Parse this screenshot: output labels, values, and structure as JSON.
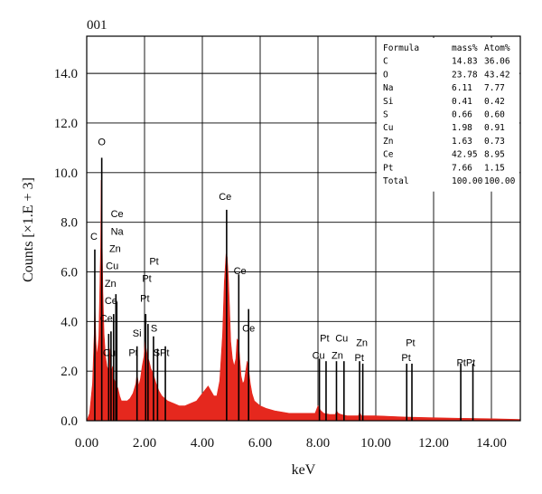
{
  "chart_data": {
    "type": "area",
    "title": "001",
    "xlabel": "keV",
    "ylabel": "Counts [×1.E + 3]",
    "xlim": [
      0,
      15
    ],
    "ylim": [
      0,
      15.5
    ],
    "x_ticks": [
      "0.00",
      "2.00",
      "4.00",
      "6.00",
      "8.00",
      "10.00",
      "12.00",
      "14.00"
    ],
    "y_ticks": [
      "0.0",
      "2.0",
      "4.0",
      "6.0",
      "8.0",
      "10.0",
      "12.0",
      "14.0"
    ],
    "grid": true,
    "series": [
      {
        "color": "#e5281e",
        "x": [
          0.0,
          0.1,
          0.2,
          0.26,
          0.28,
          0.32,
          0.36,
          0.42,
          0.48,
          0.5,
          0.53,
          0.56,
          0.6,
          0.65,
          0.7,
          0.76,
          0.8,
          0.85,
          0.9,
          0.94,
          1.0,
          1.04,
          1.08,
          1.14,
          1.2,
          1.3,
          1.4,
          1.5,
          1.6,
          1.7,
          1.74,
          1.8,
          1.86,
          1.92,
          1.98,
          2.02,
          2.06,
          2.1,
          2.16,
          2.22,
          2.3,
          2.4,
          2.5,
          2.6,
          2.7,
          2.8,
          3.0,
          3.2,
          3.4,
          3.6,
          3.8,
          4.0,
          4.2,
          4.4,
          4.5,
          4.6,
          4.7,
          4.76,
          4.82,
          4.86,
          4.9,
          4.94,
          4.98,
          5.04,
          5.1,
          5.16,
          5.2,
          5.24,
          5.28,
          5.34,
          5.4,
          5.45,
          5.5,
          5.55,
          5.6,
          5.66,
          5.72,
          5.8,
          5.9,
          6.0,
          6.2,
          6.5,
          7.0,
          7.5,
          7.9,
          8.0,
          8.05,
          8.1,
          8.2,
          8.4,
          8.6,
          8.64,
          8.7,
          8.8,
          9.0,
          9.4,
          9.44,
          9.5,
          10.0,
          11.0,
          12.0,
          13.0,
          14.0,
          15.0
        ],
        "y": [
          0.0,
          0.3,
          1.5,
          3.5,
          4.8,
          3.2,
          2.6,
          3.4,
          7.0,
          9.7,
          7.5,
          5.2,
          3.5,
          2.6,
          2.2,
          2.0,
          2.9,
          2.0,
          2.2,
          1.7,
          1.5,
          1.4,
          1.3,
          1.0,
          0.8,
          0.8,
          0.8,
          0.9,
          1.1,
          1.5,
          1.9,
          1.4,
          1.7,
          2.2,
          2.6,
          3.2,
          2.9,
          2.6,
          2.4,
          2.1,
          1.9,
          1.5,
          1.2,
          1.0,
          0.9,
          0.8,
          0.7,
          0.6,
          0.6,
          0.7,
          0.8,
          1.1,
          1.4,
          1.0,
          1.0,
          1.6,
          3.5,
          5.6,
          6.7,
          6.6,
          5.8,
          4.6,
          3.2,
          2.5,
          2.2,
          2.5,
          3.3,
          3.2,
          2.7,
          1.8,
          1.5,
          1.6,
          2.0,
          2.4,
          2.1,
          1.5,
          1.1,
          0.8,
          0.7,
          0.6,
          0.5,
          0.4,
          0.3,
          0.3,
          0.3,
          0.6,
          0.5,
          0.4,
          0.3,
          0.25,
          0.25,
          0.4,
          0.3,
          0.25,
          0.2,
          0.2,
          0.35,
          0.2,
          0.2,
          0.15,
          0.12,
          0.1,
          0.08,
          0.05
        ]
      }
    ],
    "peak_markers": [
      {
        "x": 0.28,
        "height": 6.9
      },
      {
        "x": 0.52,
        "height": 10.6
      },
      {
        "x": 0.76,
        "height": 3.5
      },
      {
        "x": 0.84,
        "height": 3.6
      },
      {
        "x": 0.93,
        "height": 4.3
      },
      {
        "x": 1.01,
        "height": 5.1
      },
      {
        "x": 1.04,
        "height": 4.8
      },
      {
        "x": 1.74,
        "height": 3.0
      },
      {
        "x": 2.04,
        "height": 4.3
      },
      {
        "x": 2.12,
        "height": 3.9
      },
      {
        "x": 2.31,
        "height": 3.4
      },
      {
        "x": 2.45,
        "height": 2.9
      },
      {
        "x": 2.72,
        "height": 3.0
      },
      {
        "x": 4.84,
        "height": 8.5
      },
      {
        "x": 5.26,
        "height": 5.9
      },
      {
        "x": 5.6,
        "height": 4.5
      },
      {
        "x": 8.05,
        "height": 2.5
      },
      {
        "x": 8.28,
        "height": 2.4
      },
      {
        "x": 8.64,
        "height": 2.4
      },
      {
        "x": 8.9,
        "height": 2.4
      },
      {
        "x": 9.44,
        "height": 2.4
      },
      {
        "x": 9.55,
        "height": 2.3
      },
      {
        "x": 11.07,
        "height": 2.3
      },
      {
        "x": 11.25,
        "height": 2.3
      },
      {
        "x": 12.94,
        "height": 2.3
      },
      {
        "x": 13.36,
        "height": 2.3
      }
    ],
    "peak_labels": [
      {
        "text": "O",
        "x": 0.52,
        "y": 11.1
      },
      {
        "text": "C",
        "x": 0.25,
        "y": 7.3
      },
      {
        "text": "Ce",
        "x": 1.05,
        "y": 8.2
      },
      {
        "text": "Na",
        "x": 1.05,
        "y": 7.5
      },
      {
        "text": "Zn",
        "x": 0.98,
        "y": 6.8
      },
      {
        "text": "Cu",
        "x": 0.88,
        "y": 6.1
      },
      {
        "text": "Zn",
        "x": 0.82,
        "y": 5.4
      },
      {
        "text": "Ce",
        "x": 0.84,
        "y": 4.7
      },
      {
        "text": "Ce",
        "x": 0.68,
        "y": 4.0
      },
      {
        "text": "Si",
        "x": 1.74,
        "y": 3.4
      },
      {
        "text": "Cu",
        "x": 0.78,
        "y": 2.6
      },
      {
        "text": "Pt",
        "x": 1.61,
        "y": 2.6
      },
      {
        "text": "S",
        "x": 2.33,
        "y": 3.6
      },
      {
        "text": "SPt",
        "x": 2.58,
        "y": 2.6
      },
      {
        "text": "Pt",
        "x": 2.33,
        "y": 6.3
      },
      {
        "text": "Pt",
        "x": 2.08,
        "y": 5.6
      },
      {
        "text": "Pt",
        "x": 2.01,
        "y": 4.8
      },
      {
        "text": "Ce",
        "x": 4.79,
        "y": 8.9
      },
      {
        "text": "Ce",
        "x": 5.3,
        "y": 5.9
      },
      {
        "text": "Ce",
        "x": 5.6,
        "y": 3.6
      },
      {
        "text": "Pt",
        "x": 8.23,
        "y": 3.2
      },
      {
        "text": "Cu",
        "x": 8.82,
        "y": 3.2
      },
      {
        "text": "Zn",
        "x": 9.52,
        "y": 3.0
      },
      {
        "text": "Cu",
        "x": 8.02,
        "y": 2.5
      },
      {
        "text": "Zn",
        "x": 8.67,
        "y": 2.5
      },
      {
        "text": "Pt",
        "x": 9.43,
        "y": 2.4
      },
      {
        "text": "Pt",
        "x": 11.2,
        "y": 3.0
      },
      {
        "text": "Pt",
        "x": 11.05,
        "y": 2.4
      },
      {
        "text": "PtPt",
        "x": 13.12,
        "y": 2.2
      }
    ],
    "table": {
      "headers": [
        "Formula",
        "mass%",
        "Atom%"
      ],
      "rows": [
        [
          "C",
          "14.83",
          "36.06"
        ],
        [
          "O",
          "23.78",
          "43.42"
        ],
        [
          "Na",
          "6.11",
          "7.77"
        ],
        [
          "Si",
          "0.41",
          "0.42"
        ],
        [
          "S",
          "0.66",
          "0.60"
        ],
        [
          "Cu",
          "1.98",
          "0.91"
        ],
        [
          "Zn",
          "1.63",
          "0.73"
        ],
        [
          "Ce",
          "42.95",
          "8.95"
        ],
        [
          "Pt",
          "7.66",
          "1.15"
        ],
        [
          "Total",
          "100.00",
          "100.00"
        ]
      ]
    }
  }
}
